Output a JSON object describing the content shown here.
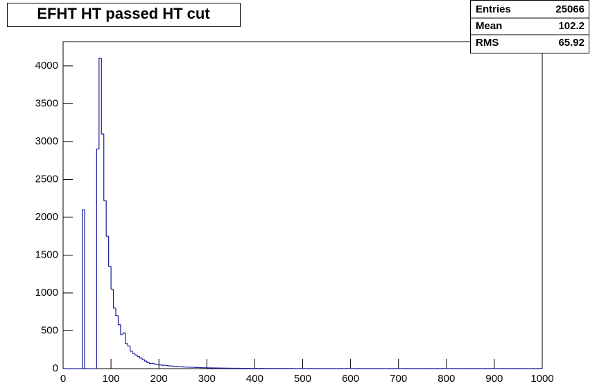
{
  "chart_data": {
    "type": "histogram",
    "title": "EFHT HT passed HT cut",
    "stats": [
      {
        "label": "Entries",
        "value": 25066
      },
      {
        "label": "Mean",
        "value": 102.2
      },
      {
        "label": "RMS",
        "value": 65.92
      }
    ],
    "color": "#1a1aa0",
    "bins": [
      0,
      5,
      10,
      15,
      20,
      25,
      30,
      35,
      40,
      45,
      50,
      55,
      60,
      65,
      70,
      75,
      80,
      85,
      90,
      95,
      100,
      105,
      110,
      115,
      120,
      125,
      130,
      135,
      140,
      145,
      150,
      155,
      160,
      165,
      170,
      175,
      180,
      185,
      190,
      195,
      200,
      205,
      210,
      215,
      220,
      225,
      230,
      235,
      240,
      245,
      250,
      255,
      260,
      265,
      270,
      275,
      280,
      285,
      290,
      295,
      300,
      305,
      310,
      315,
      320,
      325,
      330,
      335,
      340,
      345,
      350,
      355,
      360,
      365,
      370,
      375,
      380,
      385,
      390,
      395,
      400,
      405,
      410,
      415,
      420,
      425,
      430,
      435,
      440,
      445,
      450,
      455,
      460,
      465,
      470,
      475,
      480,
      485,
      490,
      495,
      500,
      505,
      510,
      515,
      520,
      525,
      530,
      535,
      540,
      545,
      550,
      555,
      560,
      565,
      570,
      575,
      580,
      585,
      590,
      595,
      600,
      605,
      610,
      615,
      620,
      625,
      630,
      635,
      640,
      645,
      650,
      655,
      660,
      665,
      670,
      675,
      680,
      685,
      690,
      695,
      700,
      705,
      710,
      715,
      720,
      725,
      730,
      735,
      740,
      745,
      750,
      755,
      760,
      765,
      770,
      775,
      780,
      785,
      790,
      795,
      800,
      805,
      810,
      815,
      820,
      825,
      830,
      835,
      840,
      845,
      850,
      855,
      860,
      865,
      870,
      875,
      880,
      885,
      890,
      895,
      900,
      905,
      910,
      915,
      920,
      925,
      930,
      935,
      940,
      945,
      950,
      955,
      960,
      965,
      970,
      975,
      980,
      985,
      990,
      995,
      1000
    ],
    "counts": [
      0,
      0,
      0,
      0,
      0,
      0,
      0,
      0,
      2100,
      0,
      0,
      0,
      0,
      0,
      2900,
      4100,
      3100,
      2220,
      1750,
      1350,
      1050,
      800,
      700,
      580,
      450,
      470,
      330,
      300,
      230,
      200,
      180,
      160,
      140,
      120,
      100,
      80,
      70,
      70,
      60,
      55,
      50,
      45,
      45,
      40,
      35,
      35,
      30,
      30,
      25,
      25,
      22,
      20,
      20,
      18,
      18,
      15,
      15,
      14,
      12,
      12,
      10,
      10,
      9,
      9,
      8,
      8,
      7,
      7,
      6,
      6,
      6,
      5,
      5,
      5,
      4,
      4,
      4,
      4,
      3,
      3,
      3,
      3,
      3,
      3,
      2,
      2,
      2,
      2,
      2,
      2,
      2,
      2,
      2,
      2,
      2,
      2,
      1,
      1,
      1,
      1,
      1,
      1,
      0,
      1,
      1,
      0,
      1,
      0,
      1,
      1,
      1,
      1,
      0,
      1,
      1,
      0,
      1,
      0,
      1,
      1,
      1,
      1,
      0,
      1,
      1,
      0,
      1,
      0,
      1,
      1,
      1,
      1,
      0,
      1,
      1,
      0,
      1,
      0,
      1,
      1,
      1,
      1,
      0,
      1,
      1,
      0,
      1,
      0,
      1,
      1,
      1,
      1,
      0,
      1,
      1,
      0,
      1,
      0,
      1,
      1,
      1,
      1,
      0,
      1,
      1,
      0,
      1,
      0,
      1,
      1,
      1,
      1,
      0,
      1,
      1,
      0,
      1,
      0,
      1,
      1,
      1,
      1,
      0,
      1,
      1,
      0,
      1,
      0,
      1,
      1,
      1,
      1,
      0,
      1,
      1,
      0,
      1,
      0,
      1,
      1
    ],
    "xlim": [
      0,
      1000
    ],
    "ylim": [
      0,
      4320
    ],
    "xticks": [
      0,
      100,
      200,
      300,
      400,
      500,
      600,
      700,
      800,
      900,
      1000
    ],
    "yticks": [
      0,
      500,
      1000,
      1500,
      2000,
      2500,
      3000,
      3500,
      4000
    ]
  }
}
